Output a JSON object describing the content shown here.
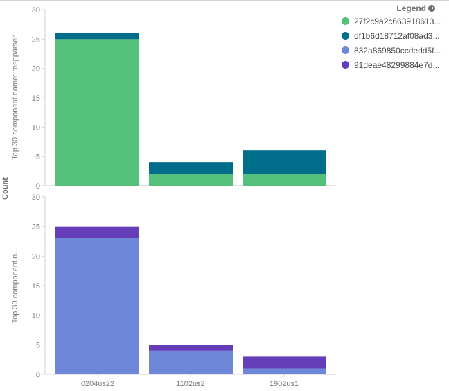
{
  "legend": {
    "title": "Legend",
    "toggle_icon": "arrow-right-circle-icon",
    "items": [
      {
        "label": "27f2c9a2c663918613...",
        "color": "#54c07a"
      },
      {
        "label": "df1b6d18712af08ad3...",
        "color": "#006e8a"
      },
      {
        "label": "832a869850ccdedd5f...",
        "color": "#6f87d8"
      },
      {
        "label": "91deae48299884e7d...",
        "color": "#663db8"
      }
    ]
  },
  "y_axis_title": "Count",
  "chart_data": [
    {
      "type": "bar",
      "stacked": true,
      "panel_label": "Top 30 component.name: respparser",
      "categories": [
        "0204us22",
        "1102us2",
        "1902us1"
      ],
      "series": [
        {
          "name": "27f2c9a2c663918613...",
          "color": "#54c07a",
          "values": [
            25,
            2,
            2
          ]
        },
        {
          "name": "df1b6d18712af08ad3...",
          "color": "#006e8a",
          "values": [
            1,
            2,
            4
          ]
        }
      ],
      "ylim": [
        0,
        30
      ],
      "yticks": [
        0,
        5,
        10,
        15,
        20,
        25,
        30
      ]
    },
    {
      "type": "bar",
      "stacked": true,
      "panel_label": "Top 30 component.n...",
      "categories": [
        "0204us22",
        "1102us2",
        "1902us1"
      ],
      "series": [
        {
          "name": "832a869850ccdedd5f...",
          "color": "#6f87d8",
          "values": [
            23,
            4,
            1
          ]
        },
        {
          "name": "91deae48299884e7d...",
          "color": "#663db8",
          "values": [
            2,
            1,
            2
          ]
        }
      ],
      "ylim": [
        0,
        30
      ],
      "yticks": [
        0,
        5,
        10,
        15,
        20,
        25,
        30
      ]
    }
  ]
}
